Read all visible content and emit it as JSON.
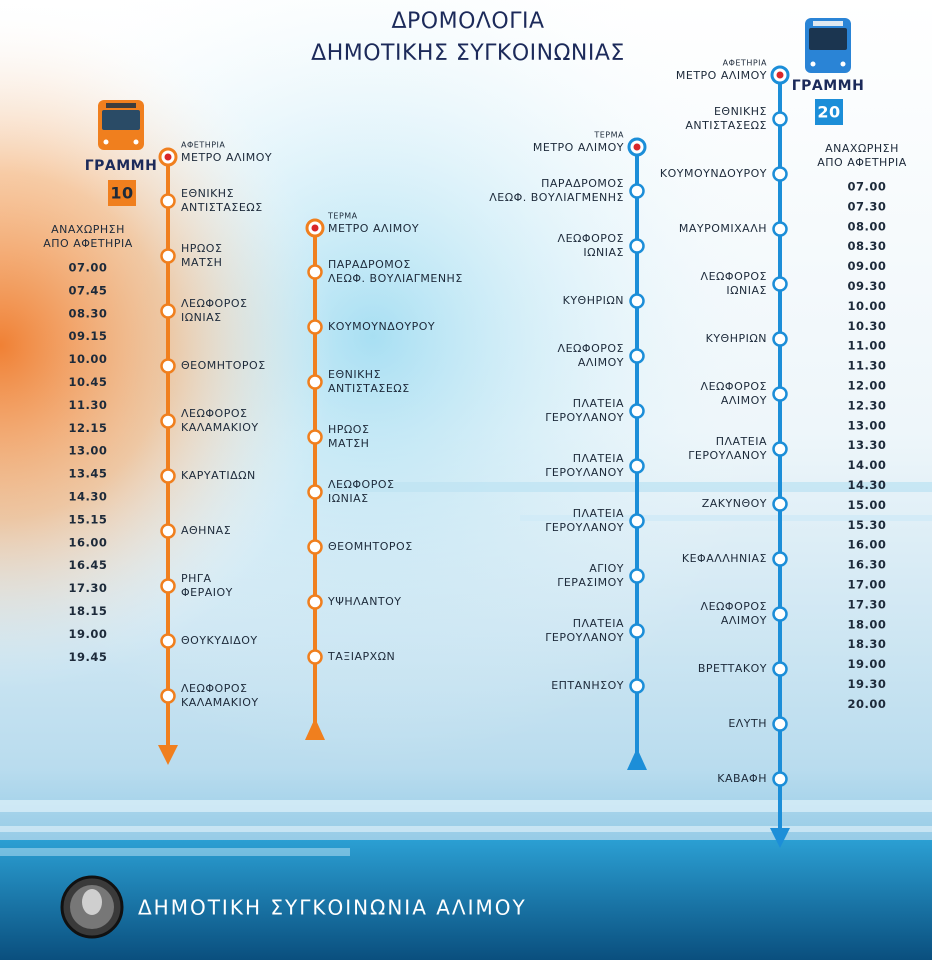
{
  "title": {
    "line1": "ΔΡΟΜΟΛΟΓΙΑ",
    "line2": "ΔΗΜΟΤΙΚΗΣ ΣΥΓΚΟΙΝΩΝΙΑΣ"
  },
  "routes": [
    {
      "line_label": "ΓΡΑΜΜΗ",
      "number": "10",
      "color": "#f07f1e",
      "schedule_title": [
        "ΑΝΑΧΩΡΗΣΗ",
        "ΑΠΟ ΑΦΕΤΗΡΙΑ"
      ],
      "departures": [
        "07.00",
        "07.45",
        "08.30",
        "09.15",
        "10.00",
        "10.45",
        "11.30",
        "12.15",
        "13.00",
        "13.45",
        "14.30",
        "15.15",
        "16.00",
        "16.45",
        "17.30",
        "18.15",
        "19.00",
        "19.45"
      ],
      "outbound": [
        {
          "tag": "ΑΦΕΤΗΡΙΑ",
          "lines": [
            "ΜΕΤΡΟ ΑΛΙΜΟΥ"
          ]
        },
        {
          "lines": [
            "ΕΘΝΙΚΗΣ",
            "ΑΝΤΙΣΤΑΣΕΩΣ"
          ]
        },
        {
          "lines": [
            "ΗΡΩΟΣ",
            "ΜΑΤΣΗ"
          ]
        },
        {
          "lines": [
            "ΛΕΩΦΟΡΟΣ",
            "ΙΩΝΙΑΣ"
          ]
        },
        {
          "lines": [
            "ΘΕΟΜΗΤΟΡΟΣ"
          ]
        },
        {
          "lines": [
            "ΛΕΩΦΟΡΟΣ",
            "ΚΑΛΑΜΑΚΙΟΥ"
          ]
        },
        {
          "lines": [
            "ΚΑΡΥΑΤΙΔΩΝ"
          ]
        },
        {
          "lines": [
            "ΑΘΗΝΑΣ"
          ]
        },
        {
          "lines": [
            "ΡΗΓΑ",
            "ΦΕΡΑΙΟΥ"
          ]
        },
        {
          "lines": [
            "ΘΟΥΚΥΔΙΔΟΥ"
          ]
        },
        {
          "lines": [
            "ΛΕΩΦΟΡΟΣ",
            "ΚΑΛΑΜΑΚΙΟΥ"
          ]
        }
      ],
      "return": [
        {
          "tag": "ΤΕΡΜΑ",
          "lines": [
            "ΜΕΤΡΟ ΑΛΙΜΟΥ"
          ]
        },
        {
          "lines": [
            "ΠΑΡΑΔΡΟΜΟΣ",
            "ΛΕΩΦ. ΒΟΥΛΙΑΓΜΕΝΗΣ"
          ]
        },
        {
          "lines": [
            "ΚΟΥΜΟΥΝΔΟΥΡΟΥ"
          ]
        },
        {
          "lines": [
            "ΕΘΝΙΚΗΣ",
            "ΑΝΤΙΣΤΑΣΕΩΣ"
          ]
        },
        {
          "lines": [
            "ΗΡΩΟΣ",
            "ΜΑΤΣΗ"
          ]
        },
        {
          "lines": [
            "ΛΕΩΦΟΡΟΣ",
            "ΙΩΝΙΑΣ"
          ]
        },
        {
          "lines": [
            "ΘΕΟΜΗΤΟΡΟΣ"
          ]
        },
        {
          "lines": [
            "ΥΨΗΛΑΝΤΟΥ"
          ]
        },
        {
          "lines": [
            "ΤΑΞΙΑΡΧΩΝ"
          ]
        }
      ]
    },
    {
      "line_label": "ΓΡΑΜΜΗ",
      "number": "20",
      "color": "#1c8ed8",
      "schedule_title": [
        "ΑΝΑΧΩΡΗΣΗ",
        "ΑΠΟ ΑΦΕΤΗΡΙΑ"
      ],
      "departures": [
        "07.00",
        "07.30",
        "08.00",
        "08.30",
        "09.00",
        "09.30",
        "10.00",
        "10.30",
        "11.00",
        "11.30",
        "12.00",
        "12.30",
        "13.00",
        "13.30",
        "14.00",
        "14.30",
        "15.00",
        "15.30",
        "16.00",
        "16.30",
        "17.00",
        "17.30",
        "18.00",
        "18.30",
        "19.00",
        "19.30",
        "20.00"
      ],
      "outbound": [
        {
          "tag": "ΑΦΕΤΗΡΙΑ",
          "lines": [
            "ΜΕΤΡΟ ΑΛΙΜΟΥ"
          ]
        },
        {
          "lines": [
            "ΕΘΝΙΚΗΣ",
            "ΑΝΤΙΣΤΑΣΕΩΣ"
          ]
        },
        {
          "lines": [
            "ΚΟΥΜΟΥΝΔΟΥΡΟΥ"
          ]
        },
        {
          "lines": [
            "ΜΑΥΡΟΜΙΧΑΛΗ"
          ]
        },
        {
          "lines": [
            "ΛΕΩΦΟΡΟΣ",
            "ΙΩΝΙΑΣ"
          ]
        },
        {
          "lines": [
            "ΚΥΘΗΡΙΩΝ"
          ]
        },
        {
          "lines": [
            "ΛΕΩΦΟΡΟΣ",
            "ΑΛΙΜΟΥ"
          ]
        },
        {
          "lines": [
            "ΠΛΑΤΕΙΑ",
            "ΓΕΡΟΥΛΑΝΟΥ"
          ]
        },
        {
          "lines": [
            "ΖΑΚΥΝΘΟΥ"
          ]
        },
        {
          "lines": [
            "ΚΕΦΑΛΛΗΝΙΑΣ"
          ]
        },
        {
          "lines": [
            "ΛΕΩΦΟΡΟΣ",
            "ΑΛΙΜΟΥ"
          ]
        },
        {
          "lines": [
            "ΒΡΕΤΤΑΚΟΥ"
          ]
        },
        {
          "lines": [
            "ΕΛΥΤΗ"
          ]
        },
        {
          "lines": [
            "ΚΑΒΑΦΗ"
          ]
        }
      ],
      "return": [
        {
          "tag": "ΤΕΡΜΑ",
          "lines": [
            "ΜΕΤΡΟ ΑΛΙΜΟΥ"
          ]
        },
        {
          "lines": [
            "ΠΑΡΑΔΡΟΜΟΣ",
            "ΛΕΩΦ. ΒΟΥΛΙΑΓΜΕΝΗΣ"
          ]
        },
        {
          "lines": [
            "ΛΕΩΦΟΡΟΣ",
            "ΙΩΝΙΑΣ"
          ]
        },
        {
          "lines": [
            "ΚΥΘΗΡΙΩΝ"
          ]
        },
        {
          "lines": [
            "ΛΕΩΦΟΡΟΣ",
            "ΑΛΙΜΟΥ"
          ]
        },
        {
          "lines": [
            "ΠΛΑΤΕΙΑ",
            "ΓΕΡΟΥΛΑΝΟΥ"
          ]
        },
        {
          "lines": [
            "ΠΛΑΤΕΙΑ",
            "ΓΕΡΟΥΛΑΝΟΥ"
          ]
        },
        {
          "lines": [
            "ΠΛΑΤΕΙΑ",
            "ΓΕΡΟΥΛΑΝΟΥ"
          ]
        },
        {
          "lines": [
            "ΑΓΙΟΥ",
            "ΓΕΡΑΣΙΜΟΥ"
          ]
        },
        {
          "lines": [
            "ΠΛΑΤΕΙΑ",
            "ΓΕΡΟΥΛΑΝΟΥ"
          ]
        },
        {
          "lines": [
            "ΕΠΤΑΝΗΣΟΥ"
          ]
        }
      ]
    }
  ],
  "footer": "ΔΗΜΟΤΙΚΗ ΣΥΓΚΟΙΝΩΝΙΑ ΑΛΙΜΟΥ"
}
